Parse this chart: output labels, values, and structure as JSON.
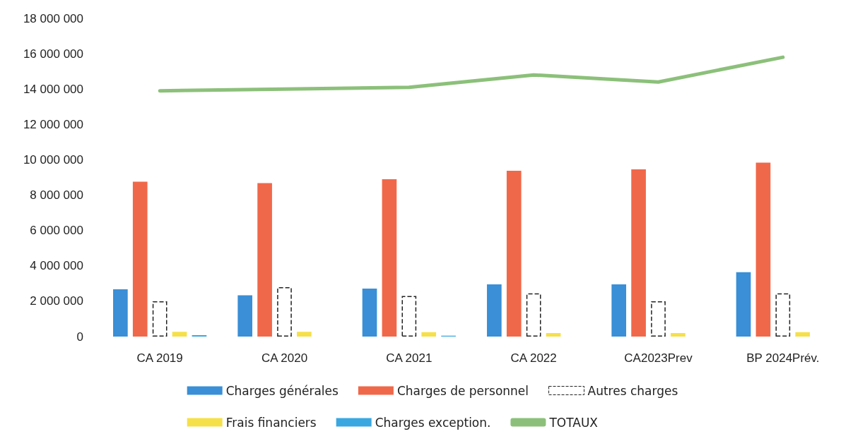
{
  "chart_data": {
    "type": "bar",
    "categories": [
      "CA 2019",
      "CA 2020",
      "CA 2021",
      "CA 2022",
      "CA2023Prev",
      "BP 2024Prév."
    ],
    "series": [
      {
        "name": "Charges générales",
        "color": "#3a8fd6",
        "values": [
          2670000,
          2330000,
          2710000,
          2950000,
          2950000,
          3640000
        ]
      },
      {
        "name": "Charges de personnel",
        "color": "#f0684a",
        "values": [
          8760000,
          8680000,
          8900000,
          9380000,
          9460000,
          9840000
        ]
      },
      {
        "name": "Autres charges",
        "color": "#ffffff",
        "values": [
          2000000,
          2790000,
          2290000,
          2440000,
          2000000,
          2440000
        ]
      },
      {
        "name": "Frais financiers",
        "color": "#f5e04a",
        "values": [
          270000,
          270000,
          250000,
          200000,
          200000,
          250000
        ]
      },
      {
        "name": "Charges exception.",
        "color": "#3aa7e0",
        "values": [
          80000,
          null,
          50000,
          0,
          0,
          0
        ]
      },
      {
        "name": "TOTAUX",
        "type": "line",
        "color": "#8cc07a",
        "values": [
          13900000,
          14000000,
          14100000,
          14800000,
          14400000,
          15800000
        ]
      }
    ],
    "ylim": [
      0,
      18000000
    ],
    "yticks": [
      0,
      2000000,
      4000000,
      6000000,
      8000000,
      10000000,
      12000000,
      14000000,
      16000000,
      18000000
    ],
    "grid": false,
    "legend": "bottom",
    "marker": "none"
  }
}
